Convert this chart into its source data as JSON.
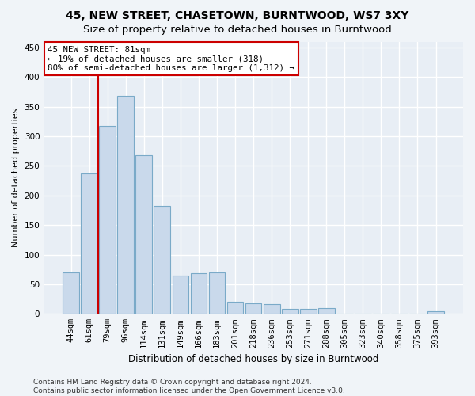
{
  "title": "45, NEW STREET, CHASETOWN, BURNTWOOD, WS7 3XY",
  "subtitle": "Size of property relative to detached houses in Burntwood",
  "xlabel": "Distribution of detached houses by size in Burntwood",
  "ylabel": "Number of detached properties",
  "bar_labels": [
    "44sqm",
    "61sqm",
    "79sqm",
    "96sqm",
    "114sqm",
    "131sqm",
    "149sqm",
    "166sqm",
    "183sqm",
    "201sqm",
    "218sqm",
    "236sqm",
    "253sqm",
    "271sqm",
    "288sqm",
    "305sqm",
    "323sqm",
    "340sqm",
    "358sqm",
    "375sqm",
    "393sqm"
  ],
  "bar_values": [
    70,
    237,
    317,
    368,
    268,
    183,
    65,
    68,
    70,
    20,
    18,
    17,
    9,
    9,
    10,
    1,
    1,
    1,
    0,
    0,
    4
  ],
  "bar_color": "#c9d9eb",
  "bar_edgecolor": "#7aaac8",
  "ylim": [
    0,
    460
  ],
  "yticks": [
    0,
    50,
    100,
    150,
    200,
    250,
    300,
    350,
    400,
    450
  ],
  "vline_color": "#cc0000",
  "vline_x": 1.5,
  "annotation_text": "45 NEW STREET: 81sqm\n← 19% of detached houses are smaller (318)\n80% of semi-detached houses are larger (1,312) →",
  "annotation_box_color": "#ffffff",
  "annotation_box_edgecolor": "#cc0000",
  "footer_text": "Contains HM Land Registry data © Crown copyright and database right 2024.\nContains public sector information licensed under the Open Government Licence v3.0.",
  "bg_color": "#f0f4f8",
  "plot_bg_color": "#e8eef5",
  "grid_color": "#ffffff",
  "title_fontsize": 10,
  "subtitle_fontsize": 9.5,
  "xlabel_fontsize": 8.5,
  "ylabel_fontsize": 8,
  "tick_fontsize": 7.5,
  "footer_fontsize": 6.5
}
